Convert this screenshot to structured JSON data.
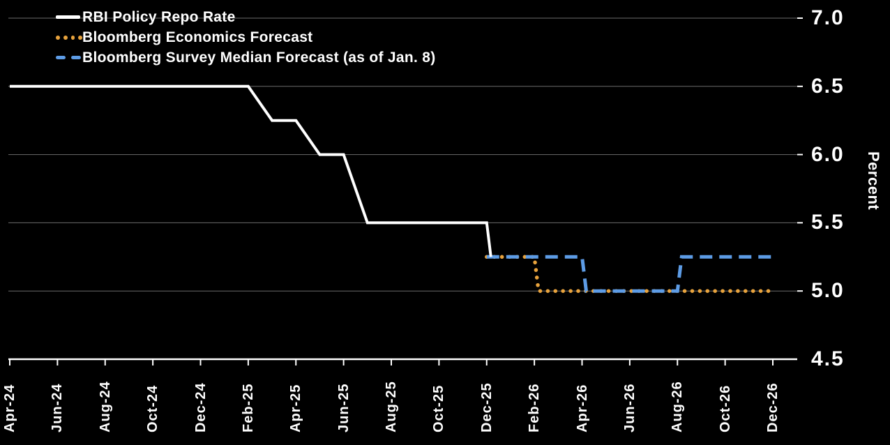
{
  "chart_data": {
    "type": "line",
    "title": "",
    "ylabel": "Percent",
    "ylim": [
      4.5,
      7.0
    ],
    "yticks": [
      7.0,
      6.5,
      6.0,
      5.5,
      5.0,
      4.5
    ],
    "ytick_labels": [
      "7.0",
      "6.5",
      "6.0",
      "5.5",
      "5.0",
      "4.5"
    ],
    "xtick_labels": [
      "Apr-24",
      "Jun-24",
      "Aug-24",
      "Oct-24",
      "Dec-24",
      "Feb-25",
      "Apr-25",
      "Jun-25",
      "Aug-25",
      "Oct-25",
      "Dec-25",
      "Feb-26",
      "Apr-26",
      "Jun-26",
      "Aug-26",
      "Oct-26",
      "Dec-26"
    ],
    "grid": "horizontal",
    "legend_position": "top-left",
    "background_color": "#000000",
    "axis_color": "#ffffff",
    "gridline_color": "#6b6b6b",
    "series": [
      {
        "name": "RBI Policy Repo Rate",
        "color": "#ffffff",
        "line_style": "solid",
        "points": [
          [
            "Apr-24",
            6.5
          ],
          [
            "Feb-25",
            6.5
          ],
          [
            "Mar-25",
            6.25
          ],
          [
            "Apr-25",
            6.25
          ],
          [
            "May-25",
            6.0
          ],
          [
            "Jun-25",
            6.0
          ],
          [
            "Jul-25",
            5.5
          ],
          [
            "Dec-25",
            5.5
          ],
          [
            "Dec-25",
            5.25
          ]
        ]
      },
      {
        "name": "Bloomberg Economics Forecast",
        "color": "#e8a33d",
        "line_style": "dotted",
        "points": [
          [
            "Dec-25",
            5.25
          ],
          [
            "Feb-26",
            5.25
          ],
          [
            "Feb-26",
            5.0
          ],
          [
            "Dec-26",
            5.0
          ]
        ]
      },
      {
        "name": "Bloomberg Survey Median Forecast (as of Jan. 8)",
        "color": "#5d9ce6",
        "line_style": "dashed",
        "points": [
          [
            "Dec-25",
            5.25
          ],
          [
            "Apr-26",
            5.25
          ],
          [
            "Apr-26",
            5.0
          ],
          [
            "Aug-26",
            5.0
          ],
          [
            "Aug-26",
            5.25
          ],
          [
            "Dec-26",
            5.25
          ]
        ]
      }
    ]
  }
}
